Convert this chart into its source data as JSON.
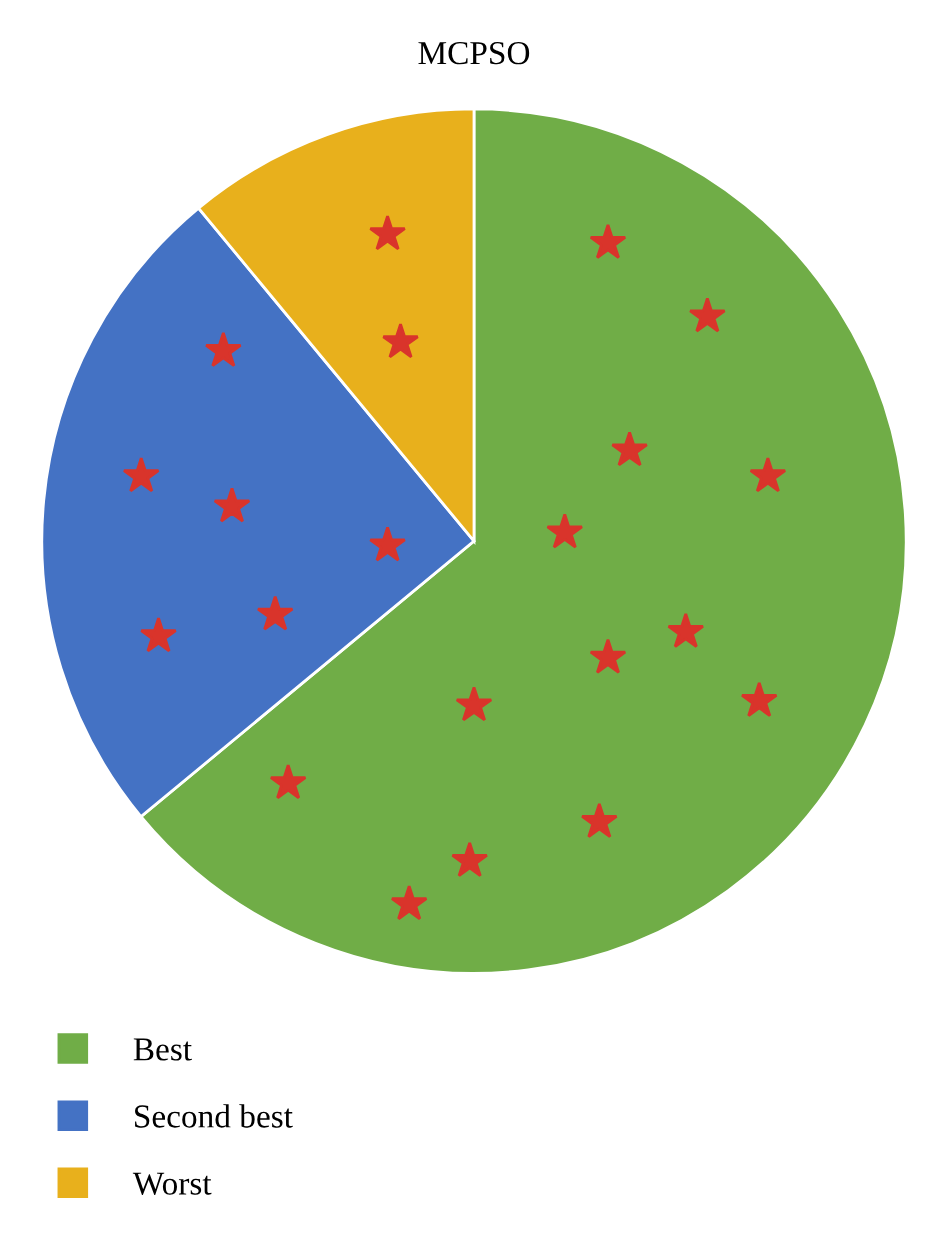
{
  "chart_data": {
    "type": "pie",
    "title": "MCPSO",
    "categories": [
      "Best",
      "Second best",
      "Worst"
    ],
    "values": [
      64,
      25,
      11
    ],
    "colors": [
      "#70ad47",
      "#4472c4",
      "#e8b01c"
    ],
    "legend": "bottom left"
  }
}
